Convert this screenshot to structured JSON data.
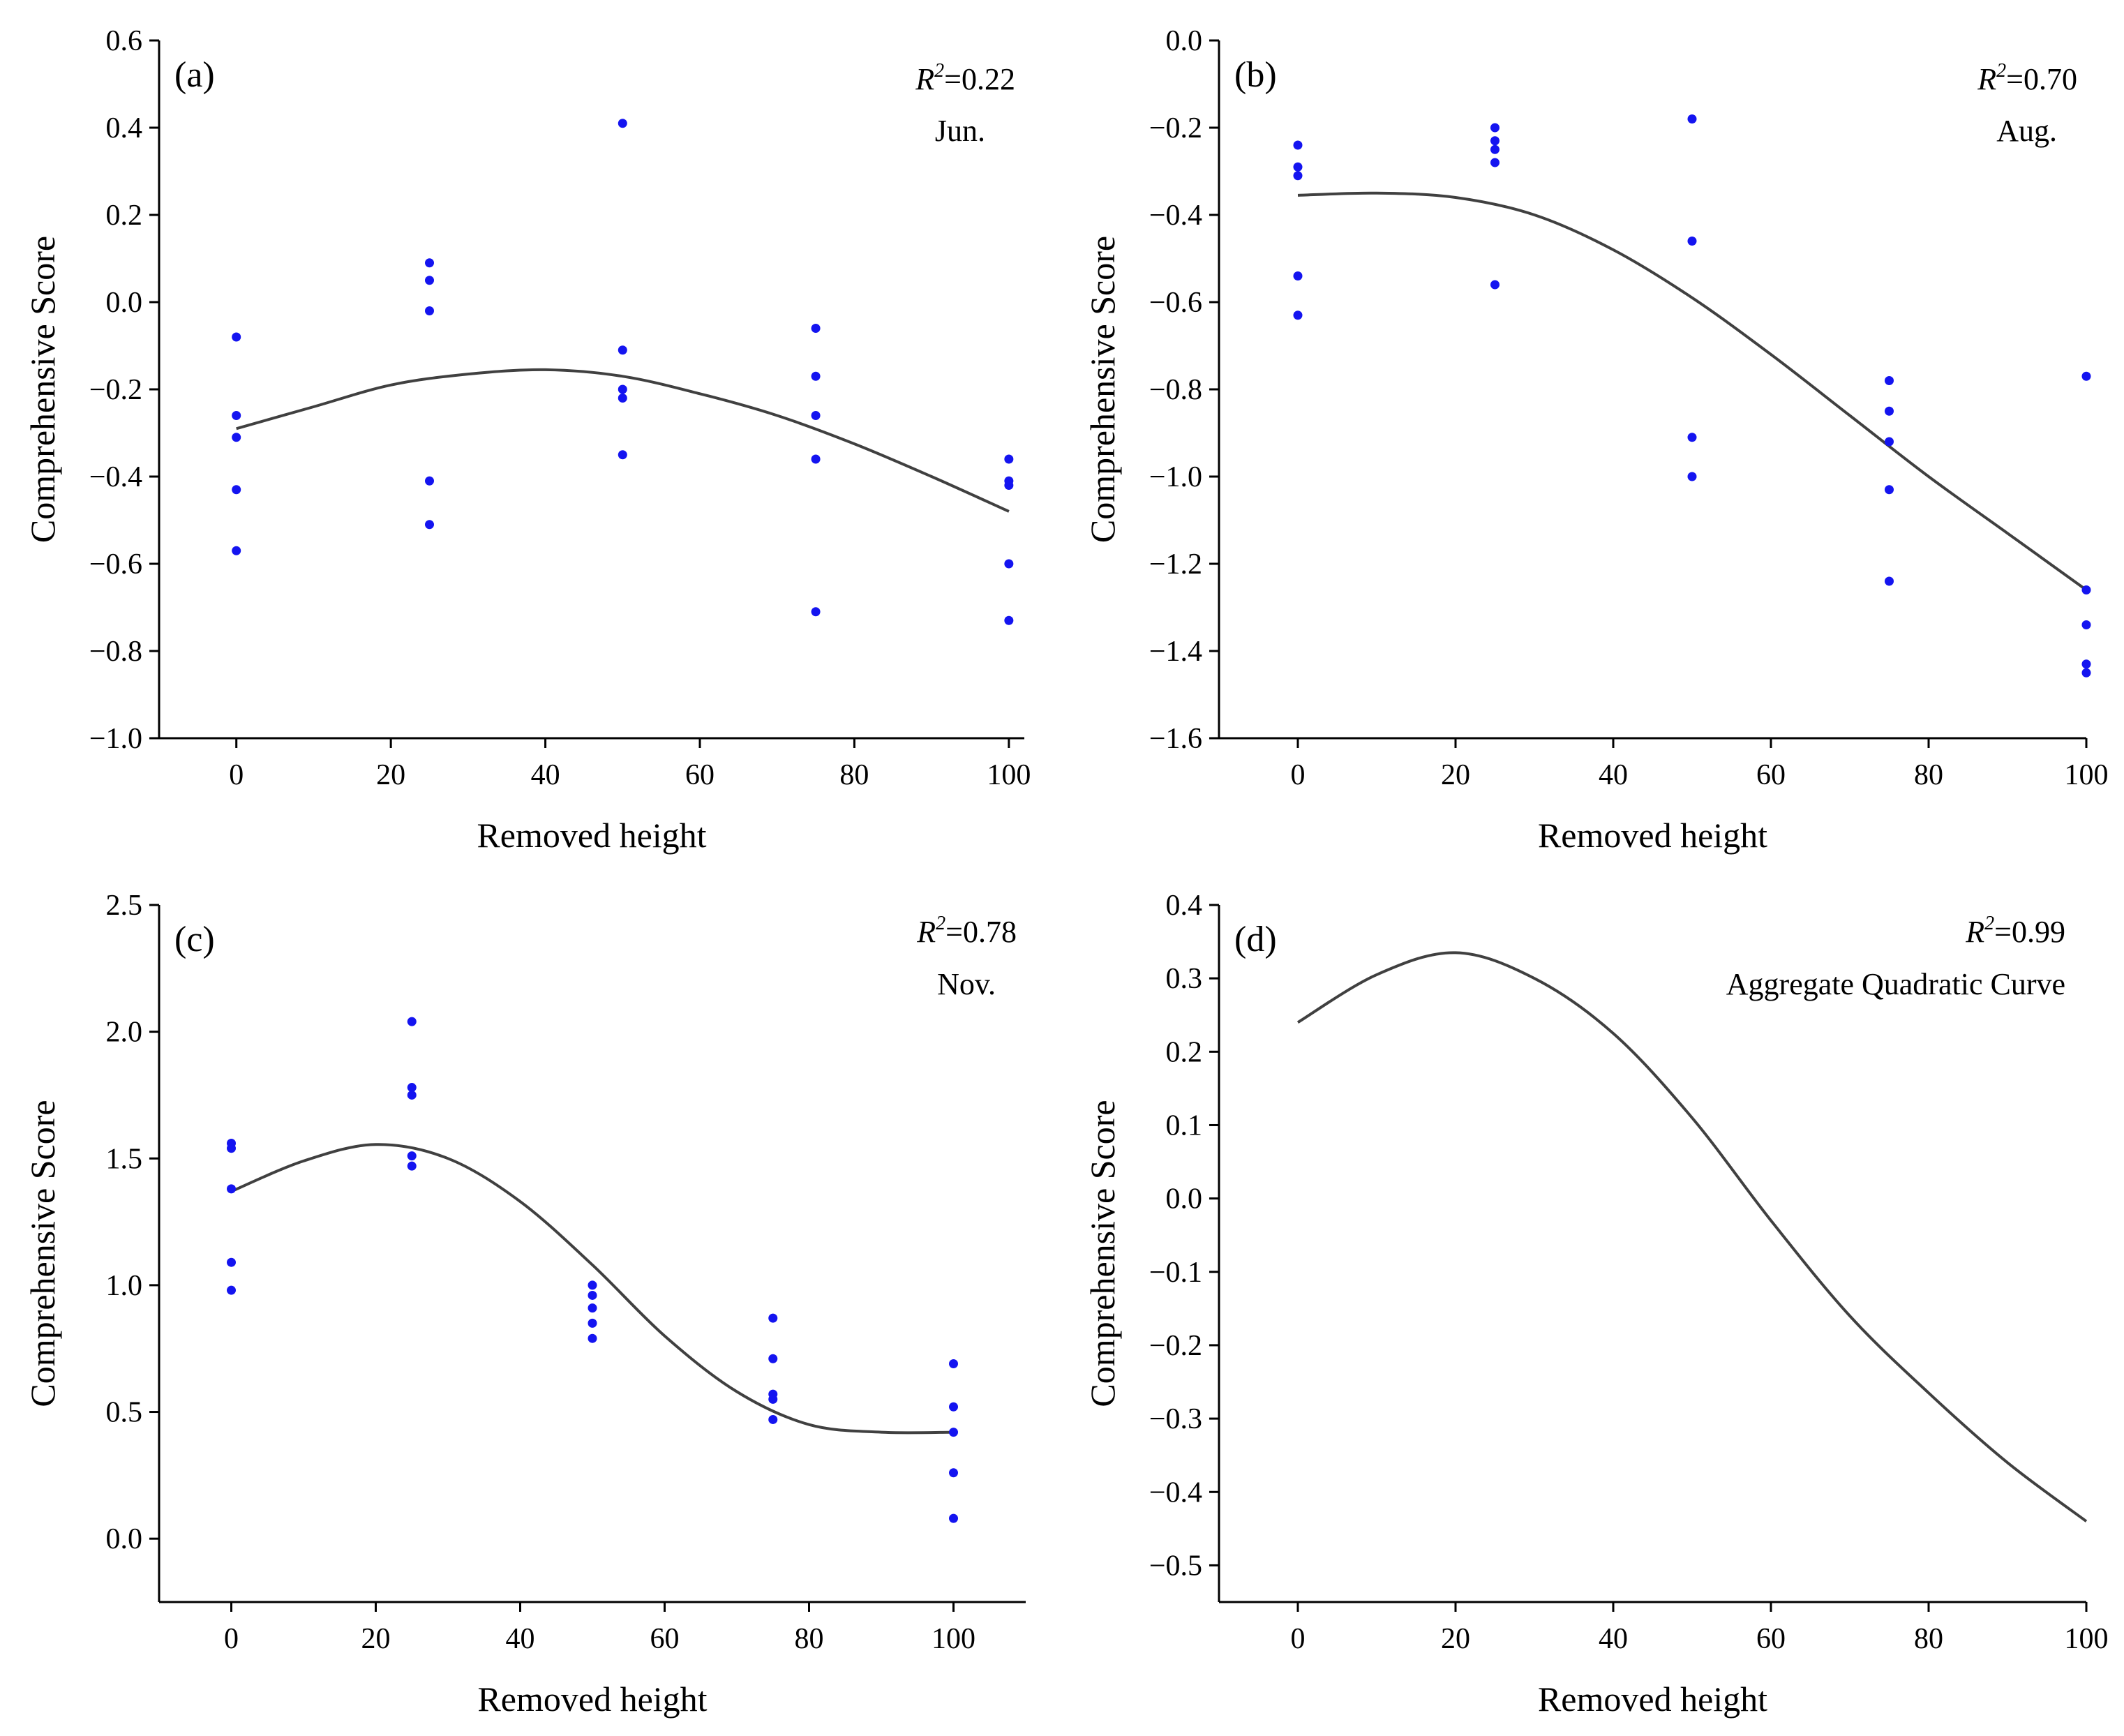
{
  "colors": {
    "points": "#1414f0",
    "curve": "#404040",
    "axes": "#000000"
  },
  "chart_data": [
    {
      "type": "scatter",
      "panel_label": "(a)",
      "r2_label": "R",
      "r2_sup": "2",
      "r2_value": "=0.22",
      "month": "Jun.",
      "xlabel": "Removed height",
      "ylabel": "Comprehensive Score",
      "xlim": [
        -10,
        102
      ],
      "ylim": [
        -1.0,
        0.6
      ],
      "xticks": [
        0,
        20,
        40,
        60,
        80,
        100
      ],
      "xtick_labels": [
        "0",
        "20",
        "40",
        "60",
        "80",
        "100"
      ],
      "yticks": [
        0.6,
        0.4,
        0.2,
        0.0,
        -0.2,
        -0.4,
        -0.6,
        -0.8,
        -1.0
      ],
      "ytick_labels": [
        "0.6",
        "0.4",
        "0.2",
        "0.0",
        "−0.2",
        "−0.4",
        "−0.6",
        "−0.8",
        "−1.0"
      ],
      "points": {
        "x": [
          0,
          0,
          0,
          0,
          0,
          25,
          25,
          25,
          25,
          25,
          50,
          50,
          50,
          50,
          50,
          75,
          75,
          75,
          75,
          75,
          100,
          100,
          100,
          100,
          100
        ],
        "y": [
          -0.08,
          -0.26,
          -0.31,
          -0.43,
          -0.57,
          0.09,
          0.05,
          -0.02,
          -0.41,
          -0.51,
          0.41,
          -0.11,
          -0.2,
          -0.22,
          -0.35,
          -0.06,
          -0.17,
          -0.26,
          -0.36,
          -0.71,
          -0.36,
          -0.41,
          -0.42,
          -0.6,
          -0.73
        ]
      },
      "curve": {
        "x": [
          0,
          10,
          20,
          30,
          40,
          50,
          60,
          70,
          80,
          90,
          100
        ],
        "y": [
          -0.29,
          -0.24,
          -0.19,
          -0.165,
          -0.155,
          -0.17,
          -0.21,
          -0.26,
          -0.325,
          -0.4,
          -0.48
        ]
      }
    },
    {
      "type": "scatter",
      "panel_label": "(b)",
      "r2_label": "R",
      "r2_sup": "2",
      "r2_value": "=0.70",
      "month": "Aug.",
      "xlabel": "Removed height",
      "ylabel": "Comprehensive Score",
      "xlim": [
        -10,
        100
      ],
      "ylim": [
        -1.6,
        0.0
      ],
      "xticks": [
        0,
        20,
        40,
        60,
        80,
        100
      ],
      "xtick_labels": [
        "0",
        "20",
        "40",
        "60",
        "80",
        "100"
      ],
      "yticks": [
        0.0,
        -0.2,
        -0.4,
        -0.6,
        -0.8,
        -1.0,
        -1.2,
        -1.4,
        -1.6
      ],
      "ytick_labels": [
        "0.0",
        "−0.2",
        "−0.4",
        "−0.6",
        "−0.8",
        "−1.0",
        "−1.2",
        "−1.4",
        "−1.6"
      ],
      "points": {
        "x": [
          0,
          0,
          0,
          0,
          0,
          25,
          25,
          25,
          25,
          25,
          50,
          50,
          50,
          50,
          75,
          75,
          75,
          75,
          75,
          100,
          100,
          100,
          100,
          100
        ],
        "y": [
          -0.24,
          -0.29,
          -0.31,
          -0.54,
          -0.63,
          -0.2,
          -0.23,
          -0.25,
          -0.28,
          -0.56,
          -0.18,
          -0.46,
          -0.91,
          -1.0,
          -0.78,
          -0.85,
          -0.92,
          -1.03,
          -1.24,
          -0.77,
          -1.26,
          -1.34,
          -1.43,
          -1.45
        ]
      },
      "curve": {
        "x": [
          0,
          10,
          20,
          30,
          40,
          50,
          60,
          70,
          80,
          90,
          100
        ],
        "y": [
          -0.355,
          -0.35,
          -0.36,
          -0.4,
          -0.48,
          -0.59,
          -0.72,
          -0.86,
          -1.0,
          -1.13,
          -1.26
        ]
      }
    },
    {
      "type": "scatter",
      "panel_label": "(c)",
      "r2_label": "R",
      "r2_sup": "2",
      "r2_value": "=0.78",
      "month": "Nov.",
      "xlabel": "Removed height",
      "ylabel": "Comprehensive Score",
      "xlim": [
        -10,
        110
      ],
      "ylim": [
        -0.25,
        2.5
      ],
      "xticks": [
        0,
        20,
        40,
        60,
        80,
        100
      ],
      "xtick_labels": [
        "0",
        "20",
        "40",
        "60",
        "80",
        "100"
      ],
      "yticks": [
        2.5,
        2.0,
        1.5,
        1.0,
        0.5,
        0.0
      ],
      "ytick_labels": [
        "2.5",
        "2.0",
        "1.5",
        "1.0",
        "0.5",
        "0.0"
      ],
      "points": {
        "x": [
          0,
          0,
          0,
          0,
          0,
          25,
          25,
          25,
          25,
          25,
          50,
          50,
          50,
          50,
          50,
          75,
          75,
          75,
          75,
          75,
          100,
          100,
          100,
          100,
          100
        ],
        "y": [
          1.56,
          1.54,
          1.38,
          1.09,
          0.98,
          2.04,
          1.78,
          1.75,
          1.51,
          1.47,
          1.0,
          0.96,
          0.91,
          0.85,
          0.79,
          0.87,
          0.71,
          0.57,
          0.55,
          0.47,
          0.69,
          0.52,
          0.42,
          0.26,
          0.08
        ]
      },
      "curve": {
        "x": [
          0,
          10,
          20,
          30,
          40,
          50,
          60,
          70,
          80,
          90,
          100
        ],
        "y": [
          1.37,
          1.49,
          1.555,
          1.5,
          1.33,
          1.08,
          0.8,
          0.58,
          0.45,
          0.42,
          0.42
        ]
      }
    },
    {
      "type": "line",
      "panel_label": "(d)",
      "r2_label": "R",
      "r2_sup": "2",
      "r2_value": "=0.99",
      "month": "Aggregate Quadratic Curve",
      "xlabel": "Removed height",
      "ylabel": "Comprehensive Score",
      "xlim": [
        -10,
        100
      ],
      "ylim": [
        -0.55,
        0.4
      ],
      "xticks": [
        0,
        20,
        40,
        60,
        80,
        100
      ],
      "xtick_labels": [
        "0",
        "20",
        "40",
        "60",
        "80",
        "100"
      ],
      "yticks": [
        0.4,
        0.3,
        0.2,
        0.1,
        0.0,
        -0.1,
        -0.2,
        -0.3,
        -0.4,
        -0.5
      ],
      "ytick_labels": [
        "0.4",
        "0.3",
        "0.2",
        "0.1",
        "0.0",
        "−0.1",
        "−0.2",
        "−0.3",
        "−0.4",
        "−0.5"
      ],
      "points": {
        "x": [],
        "y": []
      },
      "curve": {
        "x": [
          0,
          10,
          20,
          30,
          40,
          50,
          60,
          70,
          80,
          90,
          100
        ],
        "y": [
          0.24,
          0.305,
          0.335,
          0.3,
          0.225,
          0.11,
          -0.03,
          -0.16,
          -0.265,
          -0.36,
          -0.44
        ]
      }
    }
  ]
}
